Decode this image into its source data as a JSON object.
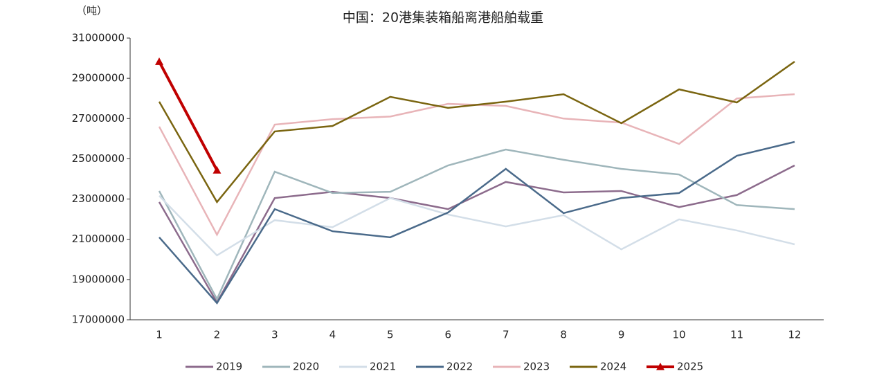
{
  "chart_data": {
    "type": "line",
    "title": "中国：20港集装箱船离港船舶载重",
    "y_label": "（吨）",
    "categories": [
      "1",
      "2",
      "3",
      "4",
      "5",
      "6",
      "7",
      "8",
      "9",
      "10",
      "11",
      "12"
    ],
    "ylim": [
      17000000,
      31000000
    ],
    "yticks": [
      17000000,
      19000000,
      21000000,
      23000000,
      25000000,
      27000000,
      29000000,
      31000000
    ],
    "legend": "bottom",
    "series": [
      {
        "name": "2019",
        "color": "#8c6b8c",
        "values": [
          22850000,
          17860000,
          23050000,
          23360000,
          23050000,
          22500000,
          23850000,
          23330000,
          23400000,
          22600000,
          23200000,
          24670000
        ]
      },
      {
        "name": "2020",
        "color": "#9fb6bb",
        "values": [
          23400000,
          18030000,
          24360000,
          23300000,
          23360000,
          24670000,
          25460000,
          24950000,
          24500000,
          24220000,
          22700000,
          22500000
        ]
      },
      {
        "name": "2021",
        "color": "#d3dee8",
        "values": [
          23160000,
          20200000,
          21950000,
          21600000,
          23050000,
          22230000,
          21640000,
          22200000,
          20500000,
          21990000,
          21440000,
          20750000
        ]
      },
      {
        "name": "2022",
        "color": "#4a6a8a",
        "values": [
          21100000,
          17830000,
          22500000,
          21400000,
          21100000,
          22330000,
          24500000,
          22300000,
          23050000,
          23300000,
          25150000,
          25840000
        ]
      },
      {
        "name": "2023",
        "color": "#e8b4b8",
        "values": [
          26600000,
          21230000,
          26700000,
          26970000,
          27100000,
          27730000,
          27630000,
          27000000,
          26800000,
          25740000,
          28000000,
          28210000
        ]
      },
      {
        "name": "2024",
        "color": "#7a6510",
        "values": [
          27840000,
          22850000,
          26360000,
          26630000,
          28080000,
          27530000,
          27840000,
          28210000,
          26770000,
          28450000,
          27800000,
          29830000
        ]
      },
      {
        "name": "2025",
        "color": "#c00000",
        "marker": "triangle",
        "values": [
          29830000,
          24430000,
          null,
          null,
          null,
          null,
          null,
          null,
          null,
          null,
          null,
          null
        ]
      }
    ]
  }
}
